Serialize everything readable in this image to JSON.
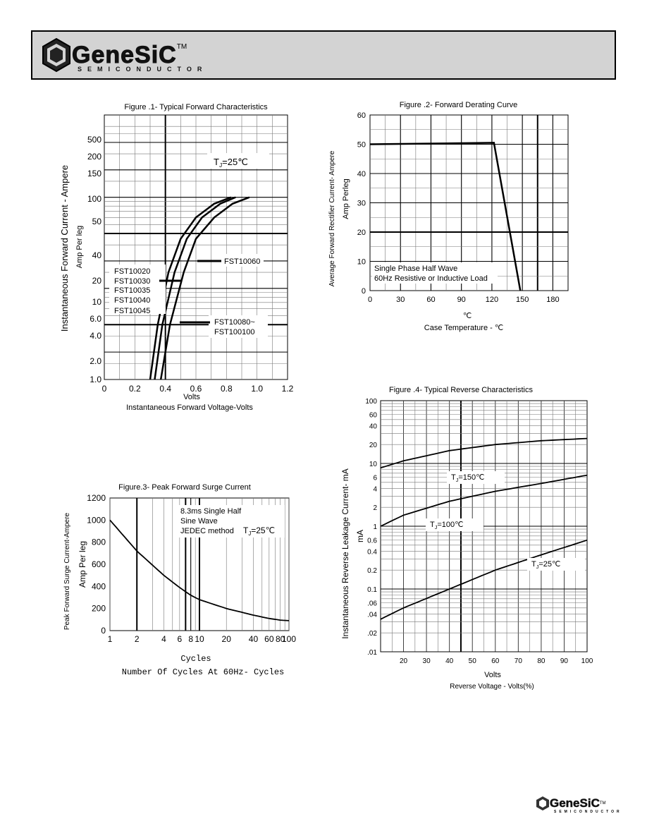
{
  "header": {
    "brand": "GeneSiC",
    "tm": "TM",
    "sub": "SEMICONDUCTOR"
  },
  "footer": {
    "brand": "GeneSiC",
    "tm": "TM",
    "sub": "SEMICONDUCTOR"
  },
  "colors": {
    "header_bg": "#d3d3d3",
    "line": "#000000",
    "grid_minor": "#888888"
  },
  "chart_data": [
    {
      "id": "fig1",
      "type": "line",
      "title": "Figure .1- Typical Forward Characteristics",
      "xlabel_top": "Volts",
      "xlabel": "Instantaneous Forward Voltage-Volts",
      "ylabel": "Instantaneous Forward Current - Ampere",
      "ylabel2": "Amp   Per leg",
      "x_ticks": [
        "0",
        "0.2",
        "0.4",
        "0.6",
        "0.8",
        "1.0",
        "1.2"
      ],
      "y_ticks": [
        "500",
        "200",
        "150",
        "100",
        "50",
        "40",
        "20",
        "10",
        "6.0",
        "4.0",
        "2.0",
        "1.0"
      ],
      "annotation_tj": "T",
      "annotation_tj_sub": "J",
      "annotation_tj_val": "=25℃",
      "labels_left": [
        "FST10020",
        "FST10030",
        "FST10035",
        "FST10040",
        "FST10045"
      ],
      "label_mid": "FST10060",
      "labels_right": [
        "FST10080~",
        "FST100100"
      ],
      "series": [
        {
          "values": [
            [
              0.3,
              1.0
            ],
            [
              0.35,
              4
            ],
            [
              0.42,
              15
            ],
            [
              0.5,
              35
            ],
            [
              0.6,
              60
            ],
            [
              0.72,
              85
            ],
            [
              0.83,
              100
            ]
          ]
        },
        {
          "values": [
            [
              0.33,
              1.0
            ],
            [
              0.38,
              4
            ],
            [
              0.46,
              15
            ],
            [
              0.54,
              35
            ],
            [
              0.64,
              60
            ],
            [
              0.76,
              85
            ],
            [
              0.86,
              100
            ]
          ]
        },
        {
          "values": [
            [
              0.37,
              1.0
            ],
            [
              0.43,
              4
            ],
            [
              0.52,
              15
            ],
            [
              0.6,
              35
            ],
            [
              0.72,
              60
            ],
            [
              0.84,
              85
            ],
            [
              0.95,
              100
            ]
          ]
        }
      ]
    },
    {
      "id": "fig2",
      "type": "line",
      "title": "Figure .2- Forward Derating Curve",
      "xlabel_top": "℃",
      "xlabel": "Case Temperature -  ℃",
      "ylabel": "Average Forward Rectifier Current- Ampere",
      "ylabel2": "Amp   Perleg",
      "x_ticks": [
        "0",
        "30",
        "60",
        "90",
        "120",
        "150",
        "180"
      ],
      "y_ticks": [
        "60",
        "50",
        "40",
        "30",
        "20",
        "10",
        "0"
      ],
      "ylim": [
        0,
        60
      ],
      "xlim": [
        0,
        195
      ],
      "note1": "Single  Phase  Half Wave",
      "note2": "60Hz  Resistive  or Inductive Load",
      "series": [
        {
          "values": [
            [
              0,
              50
            ],
            [
              122,
              50.5
            ],
            [
              148,
              0
            ]
          ]
        }
      ]
    },
    {
      "id": "fig3",
      "type": "line",
      "title": "Figure.3- Peak Forward Surge Current",
      "xlabel_top": "Cycles",
      "xlabel": "Number Of Cycles At 60Hz- Cycles",
      "ylabel": "Peak Forward Surge Current-Ampere",
      "ylabel2": "Amp     Per leg",
      "x_ticks": [
        "1",
        "2",
        "4",
        "6",
        "8",
        "10",
        "20",
        "40",
        "60",
        "80",
        "100"
      ],
      "y_ticks": [
        "1200",
        "1000",
        "800",
        "600",
        "400",
        "200",
        "0"
      ],
      "ylim": [
        0,
        1200
      ],
      "note1": "8.3ms Single Half",
      "note2": "Sine Wave",
      "note3": "JEDEC method",
      "annotation_tj": "T",
      "annotation_tj_sub": "J",
      "annotation_tj_val": "=25℃",
      "series": [
        {
          "values": [
            [
              1,
              1000
            ],
            [
              2,
              720
            ],
            [
              4,
              500
            ],
            [
              6,
              390
            ],
            [
              8,
              320
            ],
            [
              10,
              280
            ],
            [
              20,
              200
            ],
            [
              40,
              140
            ],
            [
              60,
              110
            ],
            [
              80,
              95
            ],
            [
              100,
              90
            ]
          ]
        }
      ]
    },
    {
      "id": "fig4",
      "type": "line",
      "title": "Figure .4- Typical Reverse Characteristics",
      "xlabel_top": "Volts",
      "xlabel": "Reverse   Voltage  - Volts(%)",
      "ylabel": "Instantaneous Reverse Leakage Current-  mA",
      "ylabel_unit": "mA",
      "x_ticks": [
        "20",
        "30",
        "40",
        "50",
        "60",
        "70",
        "80",
        "90",
        "100"
      ],
      "y_ticks": [
        "100",
        "60",
        "40",
        "20",
        "10",
        "6",
        "4",
        "2",
        "1",
        "0.6",
        "0.4",
        "0.2",
        "0.1",
        ".06",
        ".04",
        ".02",
        ".01"
      ],
      "xlim": [
        10,
        100
      ],
      "labels": [
        {
          "t": "T",
          "sub": "J",
          "val": "=150℃"
        },
        {
          "t": "T",
          "sub": "J",
          "val": "=100℃"
        },
        {
          "t": "T",
          "sub": "J",
          "val": "=25℃"
        }
      ],
      "series": [
        {
          "values": [
            [
              10,
              8.5
            ],
            [
              20,
              11
            ],
            [
              40,
              16
            ],
            [
              60,
              20
            ],
            [
              80,
              23
            ],
            [
              100,
              25
            ]
          ]
        },
        {
          "values": [
            [
              10,
              1.0
            ],
            [
              20,
              1.5
            ],
            [
              40,
              2.5
            ],
            [
              60,
              3.6
            ],
            [
              80,
              4.8
            ],
            [
              100,
              6.5
            ]
          ]
        },
        {
          "values": [
            [
              10,
              0.033
            ],
            [
              20,
              0.05
            ],
            [
              40,
              0.1
            ],
            [
              60,
              0.2
            ],
            [
              80,
              0.35
            ],
            [
              100,
              0.6
            ]
          ]
        }
      ]
    }
  ]
}
